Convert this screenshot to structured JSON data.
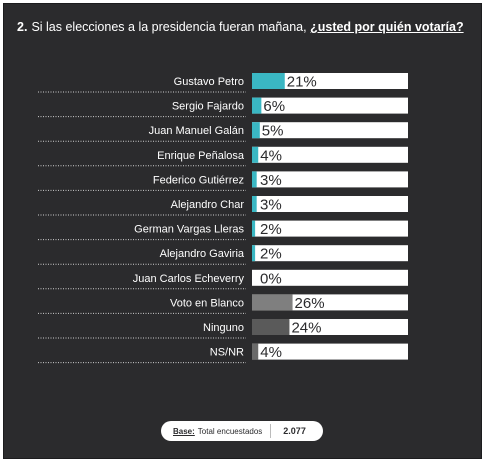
{
  "question": {
    "number": "2.",
    "text": "Si las elecciones a la presidencia fueran mañana,",
    "emphasis": "¿usted por quién votaría?"
  },
  "footer": {
    "base_label": "Base:",
    "base_desc": "Total encuestados",
    "base_value": "2.077"
  },
  "colors": {
    "panel": "#2b2b2d",
    "candidate_bar": "#3ab7c3",
    "blank_bar": "#7f7f7f",
    "none_bar": "#5a5a5a",
    "track": "#ffffff"
  },
  "chart_data": {
    "type": "bar",
    "orientation": "horizontal",
    "categories": [
      "Gustavo Petro",
      "Sergio Fajardo",
      "Juan Manuel Galán",
      "Enrique Peñalosa",
      "Federico Gutiérrez",
      "Alejandro Char",
      "German Vargas Lleras",
      "Alejandro Gaviria",
      "Juan Carlos Echeverry",
      "Voto en Blanco",
      "Ninguno",
      "NS/NR"
    ],
    "values": [
      21,
      6,
      5,
      4,
      3,
      3,
      2,
      2,
      0,
      26,
      24,
      4
    ],
    "value_labels": [
      "21%",
      "6%",
      "5%",
      "4%",
      "3%",
      "3%",
      "2%",
      "2%",
      "0%",
      "26%",
      "24%",
      "4%"
    ],
    "bar_colors": [
      "#3ab7c3",
      "#3ab7c3",
      "#3ab7c3",
      "#3ab7c3",
      "#3ab7c3",
      "#3ab7c3",
      "#3ab7c3",
      "#3ab7c3",
      "#3ab7c3",
      "#7f7f7f",
      "#5a5a5a",
      "#6a6a6a"
    ],
    "xlim": [
      0,
      100
    ],
    "title": "",
    "xlabel": "",
    "ylabel": "",
    "grid": false,
    "legend": "none"
  }
}
